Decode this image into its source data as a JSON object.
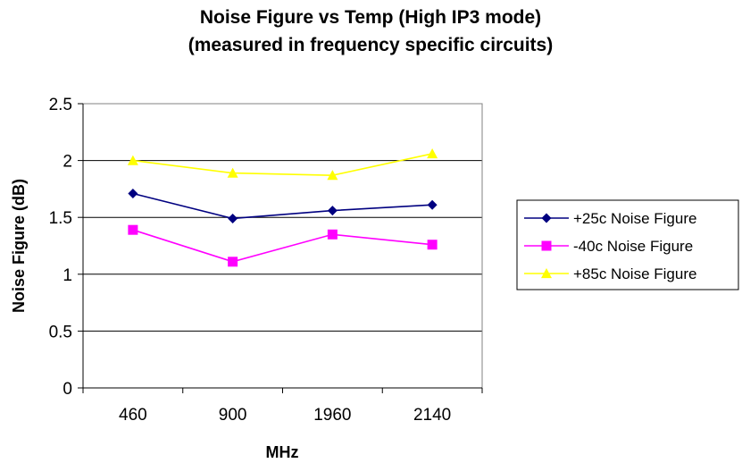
{
  "chart_data": {
    "type": "line",
    "title": "Noise Figure vs Temp (High IP3 mode)",
    "subtitle": "(measured in frequency specific circuits)",
    "xlabel": "MHz",
    "ylabel": "Noise Figure (dB)",
    "categories": [
      "460",
      "900",
      "1960",
      "2140"
    ],
    "ylim": [
      0,
      2.5
    ],
    "yticks": [
      "0",
      "0.5",
      "1",
      "1.5",
      "2",
      "2.5"
    ],
    "grid": true,
    "legend_position": "right",
    "series": [
      {
        "name": "+25c Noise Figure",
        "values": [
          1.71,
          1.49,
          1.56,
          1.61
        ],
        "color": "#000080",
        "marker": "diamond"
      },
      {
        "name": "-40c Noise Figure",
        "values": [
          1.39,
          1.11,
          1.35,
          1.26
        ],
        "color": "#FF00FF",
        "marker": "square"
      },
      {
        "name": "+85c Noise Figure",
        "values": [
          2.0,
          1.89,
          1.87,
          2.06
        ],
        "color": "#FFFF00",
        "marker": "triangle"
      }
    ]
  }
}
